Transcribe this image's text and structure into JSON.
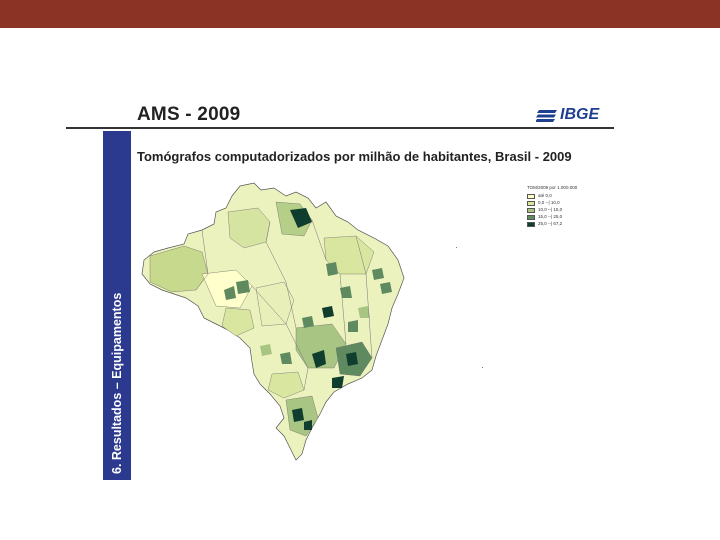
{
  "slide": {
    "title": "AMS - 2009",
    "section_label": "6. Resultados – Equipamentos",
    "logo_text": "IBGE"
  },
  "map": {
    "title": "Tomógrafos computadorizados por milhão de habitantes, Brasil - 2009",
    "legend": {
      "title": "TOM/2009 por 1.000.000",
      "items": [
        {
          "label": "até 0,0",
          "color": "#ffffcc"
        },
        {
          "label": "0,0 --| 10,0",
          "color": "#d9e6a0"
        },
        {
          "label": "10,0 --| 15,0",
          "color": "#a9c583"
        },
        {
          "label": "15,0 --| 25,0",
          "color": "#5f8a5f"
        },
        {
          "label": "25,0 --| 67,2",
          "color": "#0f3d2e"
        }
      ]
    }
  },
  "colors": {
    "header_bar": "#8b3426",
    "sidebar": "#2b3a8f",
    "logo": "#1f3f8f"
  }
}
